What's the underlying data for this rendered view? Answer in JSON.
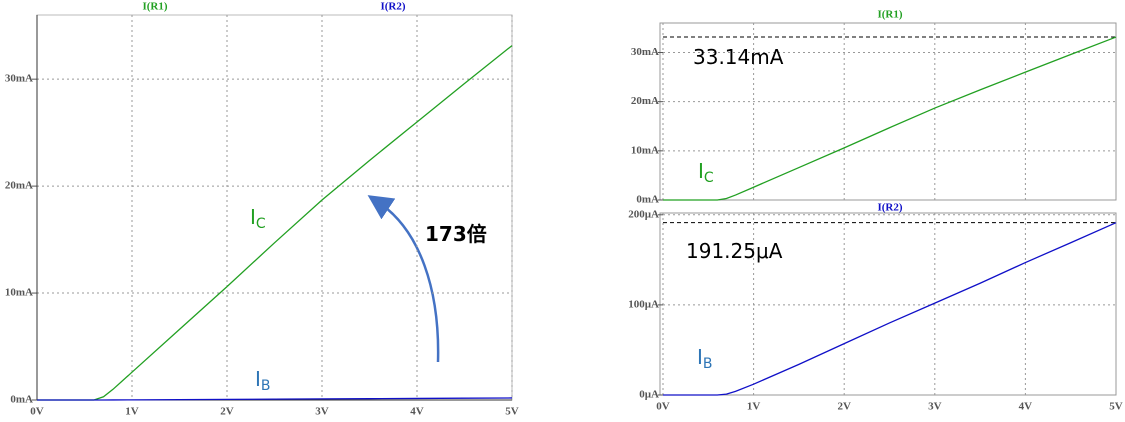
{
  "chart_data": [
    {
      "type": "line",
      "x": [
        0,
        0.5,
        0.6,
        0.7,
        0.8,
        1.0,
        1.5,
        2,
        2.5,
        3,
        3.5,
        4,
        4.5,
        5
      ],
      "series": [
        {
          "name": "I(R1)",
          "color": "#22a022",
          "values": [
            0,
            0,
            0,
            0.3,
            1.0,
            2.6,
            6.6,
            10.6,
            14.7,
            18.7,
            22.4,
            26.0,
            29.6,
            33.14
          ]
        },
        {
          "name": "I(R2)",
          "color": "#1010c8",
          "values": [
            0,
            0,
            0,
            0.001,
            0.004,
            0.012,
            0.034,
            0.057,
            0.08,
            0.102,
            0.124,
            0.147,
            0.169,
            0.19125
          ]
        }
      ],
      "xlim": [
        0,
        5
      ],
      "ylim": [
        0,
        36
      ],
      "xticks": [
        {
          "value": 0,
          "label": "0V"
        },
        {
          "value": 1,
          "label": "1V"
        },
        {
          "value": 2,
          "label": "2V"
        },
        {
          "value": 3,
          "label": "3V"
        },
        {
          "value": 4,
          "label": "4V"
        },
        {
          "value": 5,
          "label": "5V"
        }
      ],
      "yticks": [
        {
          "value": 0,
          "label": "0mA"
        },
        {
          "value": 10,
          "label": "10mA"
        },
        {
          "value": 20,
          "label": "20mA"
        },
        {
          "value": 30,
          "label": "30mA"
        }
      ],
      "grid": true,
      "annotations": [
        {
          "text": "I",
          "sub": "C",
          "color": "#22a022"
        },
        {
          "text": "I",
          "sub": "B",
          "color": "#2e75b6"
        },
        {
          "text": "173倍",
          "color": "#000000"
        }
      ]
    },
    {
      "type": "line",
      "x": [
        0,
        0.5,
        0.6,
        0.7,
        0.8,
        1.0,
        1.5,
        2,
        2.5,
        3,
        3.5,
        4,
        4.5,
        5
      ],
      "series": [
        {
          "name": "I(R1)",
          "color": "#22a022",
          "values": [
            0,
            0,
            0,
            0.3,
            1.0,
            2.6,
            6.6,
            10.6,
            14.7,
            18.7,
            22.4,
            26.0,
            29.6,
            33.14
          ]
        }
      ],
      "xlim": [
        0,
        5
      ],
      "ylim": [
        0,
        36
      ],
      "xticks": [
        0,
        1,
        2,
        3,
        4,
        5
      ],
      "yticks": [
        {
          "value": 0,
          "label": "0mA"
        },
        {
          "value": 10,
          "label": "10mA"
        },
        {
          "value": 20,
          "label": "20mA"
        },
        {
          "value": 30,
          "label": "30mA"
        }
      ],
      "grid": true,
      "hline": 33.14,
      "annotations": [
        {
          "text": "33.14mA",
          "color": "#000000"
        },
        {
          "text": "I",
          "sub": "C",
          "color": "#22a022"
        }
      ]
    },
    {
      "type": "line",
      "x": [
        0,
        0.5,
        0.6,
        0.7,
        0.8,
        1.0,
        1.5,
        2,
        2.5,
        3,
        3.5,
        4,
        4.5,
        5
      ],
      "series": [
        {
          "name": "I(R2)",
          "color": "#1010c8",
          "values": [
            0,
            0,
            0,
            1,
            4,
            12,
            34,
            57,
            80,
            102,
            124,
            147,
            169,
            191.25
          ]
        }
      ],
      "xlim": [
        0,
        5
      ],
      "ylim": [
        0,
        202
      ],
      "xticks": [
        {
          "value": 0,
          "label": "0V"
        },
        {
          "value": 1,
          "label": "1V"
        },
        {
          "value": 2,
          "label": "2V"
        },
        {
          "value": 3,
          "label": "3V"
        },
        {
          "value": 4,
          "label": "4V"
        },
        {
          "value": 5,
          "label": "5V"
        }
      ],
      "yticks": [
        {
          "value": 0,
          "label": "0µA"
        },
        {
          "value": 100,
          "label": "100µA"
        },
        {
          "value": 200,
          "label": "200µA"
        }
      ],
      "grid": true,
      "hline": 191.25,
      "annotations": [
        {
          "text": "191.25μA",
          "color": "#000000"
        },
        {
          "text": "I",
          "sub": "B",
          "color": "#2e75b6"
        }
      ]
    }
  ]
}
